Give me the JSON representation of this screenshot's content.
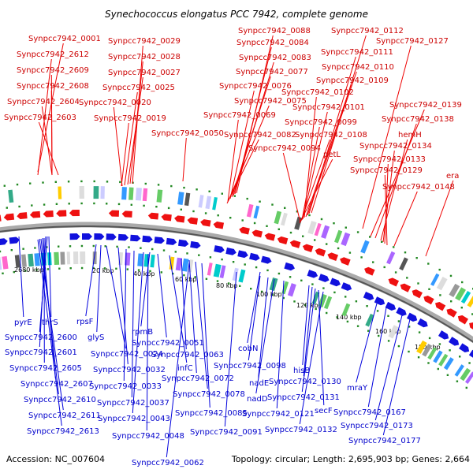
{
  "title": "Synechococcus elongatus PCC 7942, complete genome",
  "footer": {
    "accession": "Accession: NC_007604",
    "summary": "Topology: circular; Length: 2,695,903 bp; Genes: 2,664"
  },
  "colors": {
    "forward_label": "#cc0000",
    "reverse_label": "#0000cc",
    "forward_arrow": "#ee1111",
    "reverse_arrow": "#1111dd",
    "backbone": "#888888",
    "tick": "#228822"
  },
  "ticks": [
    "2680 kbp",
    "20 kbp",
    "40 kbp",
    "60 kbp",
    "80 kbp",
    "100 kbp",
    "120 kbp",
    "140 kbp",
    "160 kbp",
    "180 kbp"
  ],
  "forward_labels": [
    "Synpcc7942_0001",
    "Synpcc7942_2612",
    "Synpcc7942_2609",
    "Synpcc7942_2608",
    "Synpcc7942_2604",
    "Synpcc7942_2603",
    "Synpcc7942_0029",
    "Synpcc7942_0028",
    "Synpcc7942_0027",
    "Synpcc7942_0025",
    "Synpcc7942_0020",
    "Synpcc7942_0019",
    "Synpcc7942_0050",
    "Synpcc7942_0088",
    "Synpcc7942_0084",
    "Synpcc7942_0083",
    "Synpcc7942_0077",
    "Synpcc7942_0076",
    "Synpcc7942_0075",
    "Synpcc7942_0069",
    "Synpcc7942_0082",
    "Synpcc7942_0112",
    "Synpcc7942_0111",
    "Synpcc7942_0110",
    "Synpcc7942_0109",
    "Synpcc7942_0102",
    "Synpcc7942_0101",
    "Synpcc7942_0099",
    "Synpcc7942_0108",
    "Synpcc7942_0094",
    "petL",
    "Synpcc7942_0127",
    "Synpcc7942_0139",
    "Synpcc7942_0138",
    "hemH",
    "Synpcc7942_0134",
    "Synpcc7942_0133",
    "Synpcc7942_0129",
    "era",
    "Synpcc7942_0148"
  ],
  "reverse_labels": [
    "pyrE",
    "thrS",
    "Synpcc7942_2600",
    "Synpcc7942_2601",
    "Synpcc7942_2605",
    "Synpcc7942_2607",
    "Synpcc7942_2610",
    "Synpcc7942_2611",
    "Synpcc7942_2613",
    "rpsF",
    "glyS",
    "Synpcc7942_0024",
    "Synpcc7942_0032",
    "Synpcc7942_0033",
    "Synpcc7942_0037",
    "Synpcc7942_0043",
    "Synpcc7942_0048",
    "rpmB",
    "Synpcc7942_0051",
    "infC",
    "Synpcc7942_0063",
    "Synpcc7942_0072",
    "Synpcc7942_0078",
    "Synpcc7942_0085",
    "Synpcc7942_0062",
    "cobN",
    "Synpcc7942_0091",
    "Synpcc7942_0098",
    "nadE",
    "nadD",
    "Synpcc7942_0121",
    "hisB",
    "Synpcc7942_0130",
    "Synpcc7942_0131",
    "secF",
    "Synpcc7942_0132",
    "mraY",
    "Synpcc7942_0167",
    "Synpcc7942_0173",
    "Synpcc7942_0177"
  ]
}
